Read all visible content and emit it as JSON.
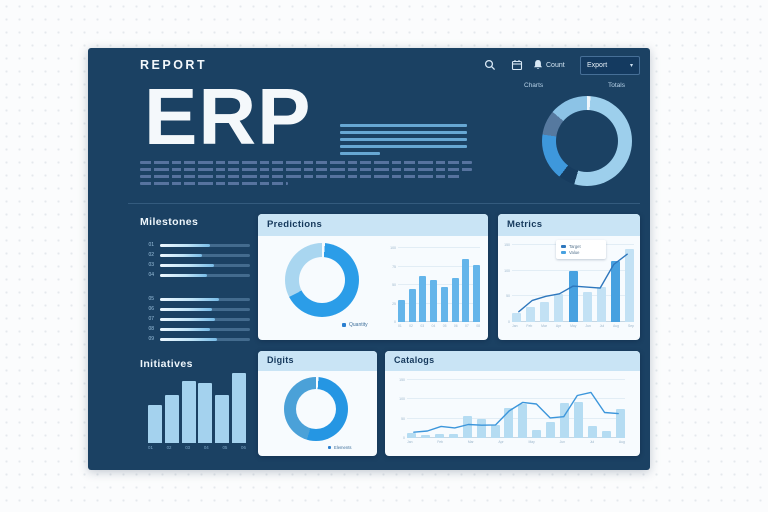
{
  "colors": {
    "panel": "#1b4163",
    "accent": "#2b9de8",
    "light_blue": "#a9d6f0",
    "pale_blue": "#c2e1f4",
    "card_header": "#c9e4f5",
    "navy_text": "#16395c",
    "line_dark": "#2e77bd"
  },
  "header": {
    "brand": "REPORT",
    "bell_label": "Count",
    "export": {
      "label": "Export",
      "chevron": "▾"
    }
  },
  "hero": {
    "title": "ERP"
  },
  "overview_donut": {
    "label_left": "Charts",
    "label_right": "Totals",
    "segments": [
      {
        "name": "primary",
        "color": "#9dcfec",
        "value": 54
      },
      {
        "name": "navy",
        "color": "#173c5f",
        "value": 6
      },
      {
        "name": "bright",
        "color": "#3e98dc",
        "value": 17
      },
      {
        "name": "slate",
        "color": "#56799f",
        "value": 9
      },
      {
        "name": "sky",
        "color": "#8cc3e6",
        "value": 14
      }
    ]
  },
  "milestones": {
    "title": "Milestones",
    "groups": [
      {
        "rows": [
          {
            "label": "01",
            "value": 55
          },
          {
            "label": "02",
            "value": 47
          },
          {
            "label": "03",
            "value": 60
          },
          {
            "label": "04",
            "value": 52
          }
        ]
      },
      {
        "rows": [
          {
            "label": "05",
            "value": 66
          },
          {
            "label": "06",
            "value": 58
          },
          {
            "label": "07",
            "value": 61
          },
          {
            "label": "08",
            "value": 55
          },
          {
            "label": "09",
            "value": 63
          }
        ]
      }
    ]
  },
  "initiatives": {
    "title": "Initiatives",
    "chart": {
      "type": "bar",
      "categories": [
        "01",
        "02",
        "03",
        "04",
        "05",
        "06"
      ],
      "values": [
        55,
        69,
        88,
        86,
        68,
        100
      ],
      "ylim": [
        0,
        100
      ],
      "bar_color": "#a4d2ee"
    }
  },
  "cards": {
    "predictions": {
      "title": "Predictions",
      "donut": {
        "segments": [
          {
            "name": "primary",
            "color": "#2b9de8",
            "value": 67
          },
          {
            "name": "secondary",
            "color": "#a9d6f0",
            "value": 33
          }
        ]
      },
      "legend": {
        "label": "Quantity",
        "color": "#2b7fd0"
      },
      "bar_chart": {
        "type": "bar",
        "categories": [
          "01",
          "02",
          "03",
          "04",
          "05",
          "06",
          "07",
          "08"
        ],
        "values": [
          30,
          45,
          62,
          57,
          47,
          60,
          85,
          77
        ],
        "yticks": [
          0,
          25,
          50,
          75,
          100
        ],
        "ylim": [
          0,
          100
        ],
        "bar_color": "#64b5ea"
      }
    },
    "metrics": {
      "title": "Metrics",
      "legend": [
        {
          "label": "Target",
          "color": "#2e77bd"
        },
        {
          "label": "Value",
          "color": "#47a1e0"
        }
      ],
      "chart": {
        "type": "combo",
        "categories": [
          "Jan",
          "Feb",
          "Mar",
          "Apr",
          "May",
          "Jun",
          "Jul",
          "Aug",
          "Sep"
        ],
        "bars": [
          18,
          30,
          40,
          55,
          100,
          58,
          68,
          118,
          143
        ],
        "highlight_indices": [
          4,
          7
        ],
        "bar_color": "#c2e1f4",
        "highlight_color": "#47a1e0",
        "line": [
          20,
          42,
          50,
          55,
          70,
          68,
          66,
          112,
          132
        ],
        "line_color": "#2e77bd",
        "yticks": [
          0,
          50,
          100,
          150
        ],
        "ylim": [
          0,
          150
        ]
      }
    },
    "digits": {
      "title": "Digits",
      "donut": {
        "segments": [
          {
            "name": "primary",
            "color": "#2596e3",
            "value": 54
          },
          {
            "name": "secondary",
            "color": "#4ba1d8",
            "value": 46
          }
        ]
      },
      "legend": {
        "label": "Elements",
        "color": "#2b7fd0"
      }
    },
    "catalogs": {
      "title": "Catalogs",
      "chart": {
        "type": "combo",
        "categories": [
          "Jan",
          "Feb",
          "Mar",
          "Apr",
          "May",
          "Jun",
          "Jul",
          "Aug"
        ],
        "bars": [
          12,
          9,
          10,
          10,
          57,
          50,
          33,
          78,
          87,
          21,
          42,
          90,
          93,
          30,
          18,
          75
        ],
        "bar_color": "#b5dcf2",
        "line": [
          15,
          18,
          30,
          26,
          35,
          33,
          34,
          70,
          92,
          88,
          52,
          55,
          110,
          118,
          66,
          63
        ],
        "line_color": "#3c96db",
        "yticks": [
          0,
          50,
          100,
          150
        ],
        "ylim": [
          0,
          150
        ]
      }
    }
  }
}
